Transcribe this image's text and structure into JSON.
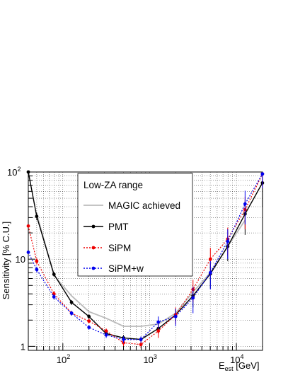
{
  "chart_data": {
    "type": "line",
    "title": "",
    "xlabel": "E_est [GeV]",
    "xlabel_main": "E",
    "xlabel_sub": "est",
    "xlabel_unit": " [GeV]",
    "ylabel": "Sensitivity [% C.U.]",
    "xscale": "log",
    "yscale": "log",
    "xlim": [
      40,
      20000
    ],
    "ylim": [
      0.9,
      100
    ],
    "grid": true,
    "legend_title": "Low-ZA range",
    "legend_position": "top-center",
    "x_ticks": [
      {
        "value": 100,
        "base": "10",
        "exp": "2"
      },
      {
        "value": 1000,
        "base": "10",
        "exp": "3"
      },
      {
        "value": 10000,
        "base": "10",
        "exp": "4"
      }
    ],
    "y_ticks": [
      {
        "value": 1,
        "label": "1"
      },
      {
        "value": 10,
        "label": "10"
      },
      {
        "value": 100,
        "base": "10",
        "exp": "2"
      }
    ],
    "series": [
      {
        "name": "MAGIC achieved",
        "color": "#bbbbbb",
        "line": "solid",
        "marker": "none",
        "points": [
          {
            "x": 50,
            "y": 33
          },
          {
            "x": 79,
            "y": 6.5
          },
          {
            "x": 126,
            "y": 3.8
          },
          {
            "x": 200,
            "y": 2.5
          },
          {
            "x": 316,
            "y": 2.1
          },
          {
            "x": 500,
            "y": 1.7
          },
          {
            "x": 794,
            "y": 1.7
          },
          {
            "x": 1259,
            "y": 1.8
          },
          {
            "x": 1995,
            "y": 2.4
          },
          {
            "x": 3162,
            "y": 4.2
          },
          {
            "x": 5012,
            "y": 7.0
          },
          {
            "x": 7943,
            "y": 14
          },
          {
            "x": 12589,
            "y": 28
          }
        ]
      },
      {
        "name": "PMT",
        "color": "#000000",
        "line": "solid",
        "marker": "circle",
        "points": [
          {
            "x": 40,
            "y": 100
          },
          {
            "x": 50,
            "y": 31,
            "err": 3
          },
          {
            "x": 79,
            "y": 6.7,
            "err": 0.4
          },
          {
            "x": 126,
            "y": 3.2,
            "err": 0.2
          },
          {
            "x": 200,
            "y": 2.2,
            "err": 0.15
          },
          {
            "x": 316,
            "y": 1.4,
            "err": 0.08
          },
          {
            "x": 500,
            "y": 1.25,
            "err": 0.1
          },
          {
            "x": 794,
            "y": 1.2,
            "err": 0.08
          },
          {
            "x": 1259,
            "y": 1.6,
            "err": 0.2
          },
          {
            "x": 1995,
            "y": 2.3,
            "err": 0.35
          },
          {
            "x": 3162,
            "y": 3.8,
            "err": 1.0
          },
          {
            "x": 5012,
            "y": 6.8,
            "err": 2.2
          },
          {
            "x": 7943,
            "y": 14,
            "err": 4.5
          },
          {
            "x": 12589,
            "y": 33,
            "err": 14
          },
          {
            "x": 19953,
            "y": 75,
            "err": 35
          }
        ]
      },
      {
        "name": "SiPM",
        "color": "#ee0000",
        "line": "dotted",
        "marker": "circle",
        "points": [
          {
            "x": 40,
            "y": 24
          },
          {
            "x": 50,
            "y": 9.5,
            "err": 0.8
          },
          {
            "x": 79,
            "y": 4.0,
            "err": 0.3
          },
          {
            "x": 126,
            "y": 2.4,
            "err": 0.15
          },
          {
            "x": 200,
            "y": 1.95,
            "err": 0.12
          },
          {
            "x": 316,
            "y": 1.5,
            "err": 0.1
          },
          {
            "x": 500,
            "y": 1.1,
            "err": 0.1
          },
          {
            "x": 794,
            "y": 1.05,
            "err": 0.1
          },
          {
            "x": 1259,
            "y": 1.5,
            "err": 0.25
          },
          {
            "x": 1995,
            "y": 2.3,
            "err": 0.5
          },
          {
            "x": 3162,
            "y": 4.5,
            "err": 1.3
          },
          {
            "x": 5012,
            "y": 10,
            "err": 3.5
          },
          {
            "x": 7943,
            "y": 17,
            "err": 6
          },
          {
            "x": 12589,
            "y": 37,
            "err": 15
          },
          {
            "x": 19953,
            "y": 95,
            "err": 30
          }
        ]
      },
      {
        "name": "SiPM+w",
        "color": "#0000ee",
        "line": "dotted",
        "marker": "circle",
        "points": [
          {
            "x": 40,
            "y": 12
          },
          {
            "x": 50,
            "y": 7.6,
            "err": 0.6
          },
          {
            "x": 79,
            "y": 3.7,
            "err": 0.25
          },
          {
            "x": 126,
            "y": 2.4,
            "err": 0.15
          },
          {
            "x": 200,
            "y": 1.65,
            "err": 0.1
          },
          {
            "x": 316,
            "y": 1.35,
            "err": 0.1
          },
          {
            "x": 500,
            "y": 1.2,
            "err": 0.1
          },
          {
            "x": 794,
            "y": 1.2,
            "err": 0.1
          },
          {
            "x": 1259,
            "y": 1.9,
            "err": 0.3
          },
          {
            "x": 1995,
            "y": 2.2,
            "err": 0.5
          },
          {
            "x": 3162,
            "y": 3.6,
            "err": 1.2
          },
          {
            "x": 5012,
            "y": 7.0,
            "err": 2.5
          },
          {
            "x": 7943,
            "y": 16,
            "err": 6
          },
          {
            "x": 12589,
            "y": 43,
            "err": 18
          },
          {
            "x": 19953,
            "y": 95,
            "err": 30
          }
        ]
      }
    ]
  }
}
